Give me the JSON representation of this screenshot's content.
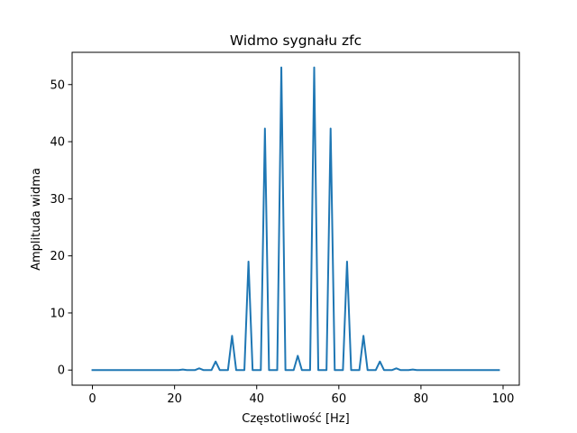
{
  "chart_data": {
    "type": "line",
    "title": "Widmo sygnału zfc",
    "xlabel": "Częstotliwość [Hz]",
    "ylabel": "Amplituda widma",
    "xlim": [
      -4.95,
      103.95
    ],
    "ylim": [
      -2.65,
      55.65
    ],
    "xticks": [
      0,
      20,
      40,
      60,
      80,
      100
    ],
    "yticks": [
      0,
      10,
      20,
      30,
      40,
      50
    ],
    "grid": false,
    "series": [
      {
        "color": "#1f77b4",
        "x": [
          0,
          1,
          2,
          3,
          4,
          5,
          6,
          7,
          8,
          9,
          10,
          11,
          12,
          13,
          14,
          15,
          16,
          17,
          18,
          19,
          20,
          21,
          22,
          23,
          24,
          25,
          26,
          27,
          28,
          29,
          30,
          31,
          32,
          33,
          34,
          35,
          36,
          37,
          38,
          39,
          40,
          41,
          42,
          43,
          44,
          45,
          46,
          47,
          48,
          49,
          50,
          51,
          52,
          53,
          54,
          55,
          56,
          57,
          58,
          59,
          60,
          61,
          62,
          63,
          64,
          65,
          66,
          67,
          68,
          69,
          70,
          71,
          72,
          73,
          74,
          75,
          76,
          77,
          78,
          79,
          80,
          81,
          82,
          83,
          84,
          85,
          86,
          87,
          88,
          89,
          90,
          91,
          92,
          93,
          94,
          95,
          96,
          97,
          98,
          99
        ],
        "y": [
          0,
          0,
          0,
          0,
          0,
          0,
          0,
          0,
          0,
          0,
          0,
          0,
          0,
          0,
          0,
          0,
          0,
          0,
          0,
          0,
          0,
          0,
          0.1,
          0,
          0,
          0,
          0.3,
          0,
          0,
          0,
          1.5,
          0,
          0,
          0,
          6,
          0,
          0,
          0,
          19,
          0,
          0,
          0,
          42.3,
          0,
          0,
          0,
          53,
          0,
          0,
          0,
          2.5,
          0,
          0,
          0,
          53,
          0,
          0,
          0,
          42.3,
          0,
          0,
          0,
          19,
          0,
          0,
          0,
          6,
          0,
          0,
          0,
          1.5,
          0,
          0,
          0,
          0.3,
          0,
          0,
          0,
          0.1,
          0,
          0,
          0,
          0,
          0,
          0,
          0,
          0,
          0,
          0,
          0,
          0,
          0,
          0,
          0,
          0,
          0,
          0,
          0,
          0,
          0
        ]
      }
    ]
  }
}
